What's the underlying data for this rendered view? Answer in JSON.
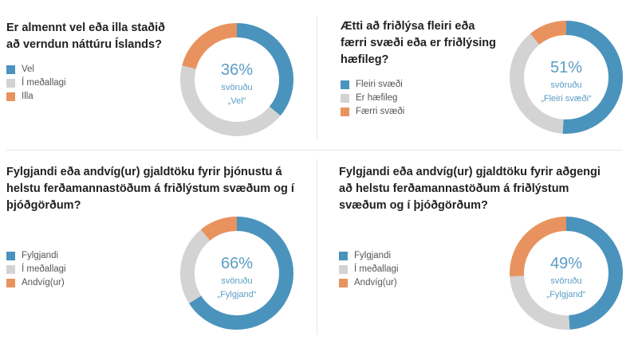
{
  "colors": {
    "blue": "#4a93bd",
    "grey": "#d3d3d3",
    "orange": "#e8935f",
    "center_text": "#5a9dc4"
  },
  "chart_data": [
    {
      "type": "pie",
      "title": "Er almennt vel eða illa staðið að verndun náttúru Íslands?",
      "categories": [
        "Vel",
        "Í meðallagi",
        "Illa"
      ],
      "values": [
        36,
        43,
        21
      ],
      "center": {
        "value": "36%",
        "line1": "svöruðu",
        "line2": "„Vel“"
      }
    },
    {
      "type": "pie",
      "title": "Ætti að friðlýsa fleiri eða færri svæði eða er friðlýsing hæfileg?",
      "categories": [
        "Fleiri svæði",
        "Er hæfileg",
        "Færri svæði"
      ],
      "values": [
        51,
        38,
        11
      ],
      "center": {
        "value": "51%",
        "line1": "svöruðu",
        "line2": "„Fleiri svæði“"
      }
    },
    {
      "type": "pie",
      "title": "Fylgjandi eða andvíg(ur) gjaldtöku fyrir þjónustu á helstu ferðamannastöðum á friðlýstum svæðum og í þjóðgörðum?",
      "categories": [
        "Fylgjandi",
        "Í meðallagi",
        "Andvíg(ur)"
      ],
      "values": [
        66,
        23,
        11
      ],
      "center": {
        "value": "66%",
        "line1": "svöruðu",
        "line2": "„Fylgjand“"
      }
    },
    {
      "type": "pie",
      "title": "Fylgjandi eða andvíg(ur) gjaldtöku fyrir aðgengi að helstu ferðamannastöðum á friðlýstum svæðum og í þjóðgörðum?",
      "categories": [
        "Fylgjandi",
        "Í meðallagi",
        "Andvíg(ur)"
      ],
      "values": [
        49,
        25,
        26
      ],
      "center": {
        "value": "49%",
        "line1": "svöruðu",
        "line2": "„Fylgjand“"
      }
    }
  ]
}
